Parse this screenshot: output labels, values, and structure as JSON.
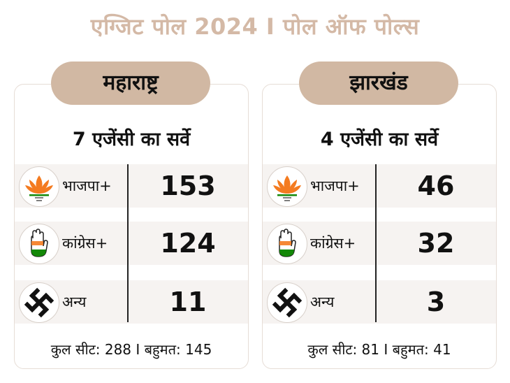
{
  "header": {
    "title": "एग्जिट पोल 2024 I पोल ऑफ पोल्स"
  },
  "panels": [
    {
      "state": "महाराष्ट्र",
      "survey": "7 एजेंसी का सर्वे",
      "rows": [
        {
          "party": "भाजपा+",
          "seats": "153",
          "icon": "lotus-icon"
        },
        {
          "party": "कांग्रेस+",
          "seats": "124",
          "icon": "hand-icon"
        },
        {
          "party": "अन्य",
          "seats": "11",
          "icon": "swastika-icon"
        }
      ],
      "footer": "कुल सीट: 288 I बहुमत: 145"
    },
    {
      "state": "झारखंड",
      "survey": "4 एजेंसी का सर्वे",
      "rows": [
        {
          "party": "भाजपा+",
          "seats": "46",
          "icon": "lotus-icon"
        },
        {
          "party": "कांग्रेस+",
          "seats": "32",
          "icon": "hand-icon"
        },
        {
          "party": "अन्य",
          "seats": "3",
          "icon": "swastika-icon"
        }
      ],
      "footer": "कुल सीट: 81 I बहुमत: 41"
    }
  ],
  "colors": {
    "title": "#d4b9a6",
    "pill": "#d1b8a3",
    "row": "#f6f3f1",
    "saffron": "#f47b20",
    "green": "#138808"
  }
}
